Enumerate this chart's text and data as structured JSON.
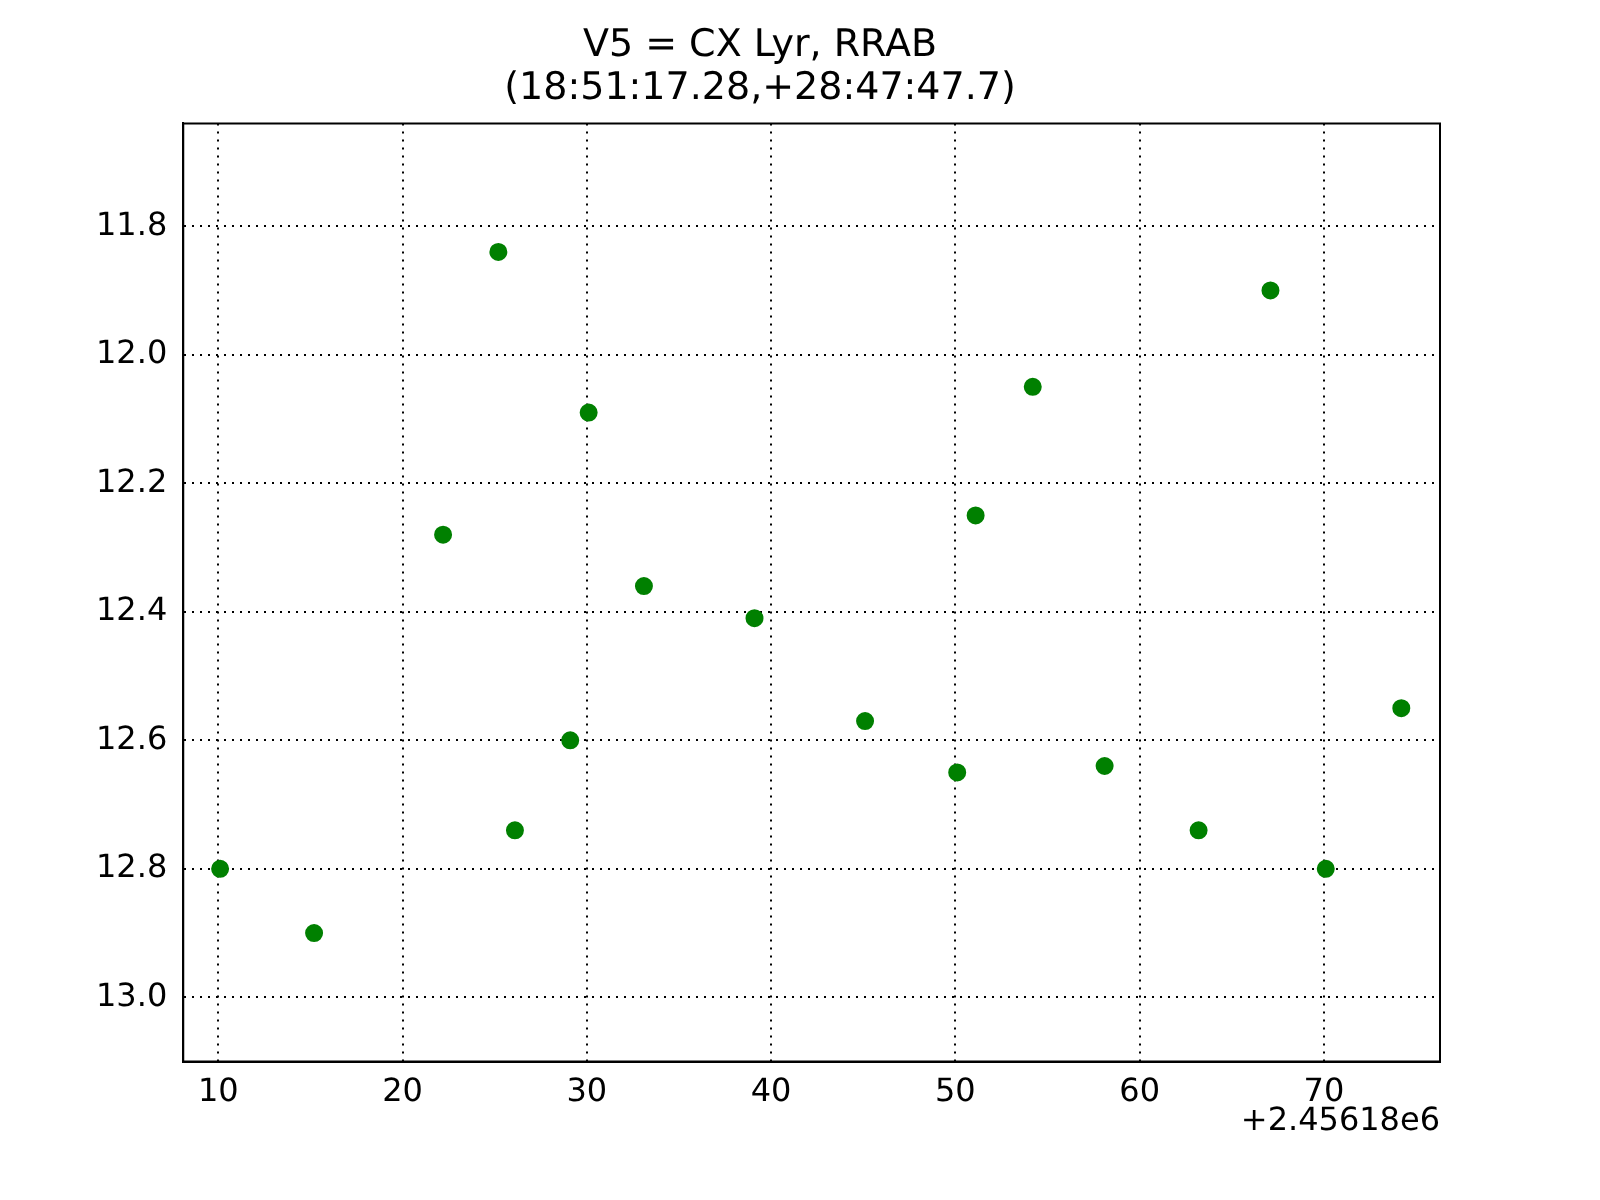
{
  "chart_data": {
    "type": "scatter",
    "title": "V5 = CX Lyr, RRAB\n(18:51:17.28,+28:47:47.7)",
    "x": [
      10.1,
      15.2,
      22.2,
      25.2,
      26.1,
      29.1,
      30.1,
      33.1,
      39.1,
      45.1,
      50.1,
      51.1,
      54.2,
      58.1,
      63.2,
      67.1,
      70.1,
      74.2
    ],
    "series": [
      {
        "color": "#008000",
        "values": [
          12.8,
          12.9,
          12.28,
          11.84,
          12.74,
          12.6,
          12.09,
          12.36,
          12.41,
          12.57,
          12.65,
          12.25,
          12.05,
          12.64,
          12.74,
          11.9,
          12.8,
          12.55
        ]
      }
    ],
    "xlim": [
      8.1,
      76.3
    ],
    "xticks": [
      10,
      20,
      30,
      40,
      50,
      60,
      70
    ],
    "ylim": [
      13.1,
      11.64
    ],
    "yticks": [
      {
        "value": 11.8,
        "label": "11.8"
      },
      {
        "value": 12.0,
        "label": "12.0"
      },
      {
        "value": 12.2,
        "label": "12.2"
      },
      {
        "value": 12.4,
        "label": "12.4"
      },
      {
        "value": 12.6,
        "label": "12.6"
      },
      {
        "value": 12.8,
        "label": "12.8"
      },
      {
        "value": 13.0,
        "label": "13.0"
      }
    ],
    "grid": true,
    "marker": "circle",
    "legend": false,
    "annotations": [
      "+2.45618e6"
    ]
  }
}
